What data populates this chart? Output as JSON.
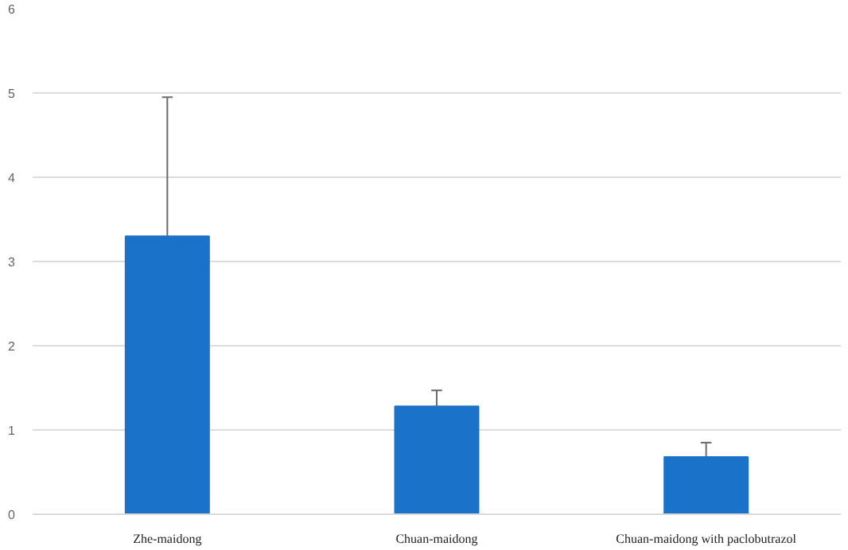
{
  "chart_data": {
    "type": "bar",
    "categories": [
      "Zhe-maidong",
      "Chuan-maidong",
      "Chuan-maidong with paclobutrazol"
    ],
    "values": [
      3.3,
      1.28,
      0.68
    ],
    "errors": [
      [
        3.3,
        4.95
      ],
      [
        1.28,
        1.47
      ],
      [
        0.68,
        0.85
      ]
    ],
    "color": "#1b73c9",
    "ylim": [
      0,
      6
    ],
    "yticks": [
      0,
      1,
      2,
      3,
      4,
      5,
      6
    ],
    "grid": "y"
  }
}
